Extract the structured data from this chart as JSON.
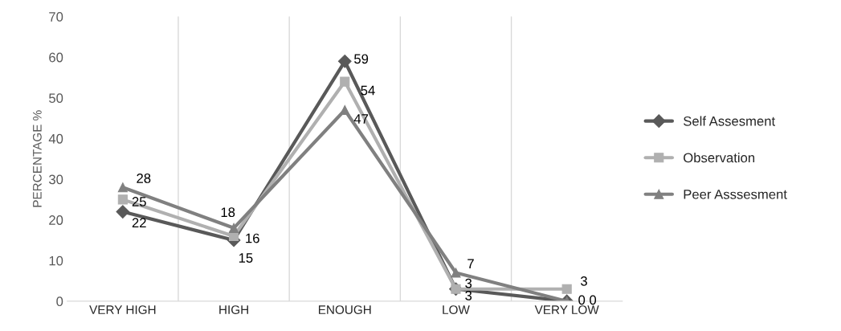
{
  "chart_data": {
    "type": "line",
    "ylabel": "PERCENTAGE %",
    "categories": [
      "VERY HIGH",
      "HIGH",
      "ENOUGH",
      "LOW",
      "VERY LOW"
    ],
    "series": [
      {
        "name": "Self Assesment",
        "color": "#595959",
        "marker": "diamond",
        "values": [
          22,
          15,
          59,
          3,
          0
        ]
      },
      {
        "name": "Observation",
        "color": "#b0b0b0",
        "marker": "square",
        "values": [
          25,
          16,
          54,
          3,
          3
        ]
      },
      {
        "name": "Peer Asssesment",
        "color": "#808080",
        "marker": "triangle",
        "values": [
          28,
          18,
          47,
          7,
          0
        ]
      }
    ],
    "ylim": [
      0,
      70
    ],
    "yticks": [
      0,
      10,
      20,
      30,
      40,
      50,
      60,
      70
    ],
    "grid": "x",
    "legend": "right",
    "data_labels": true
  }
}
